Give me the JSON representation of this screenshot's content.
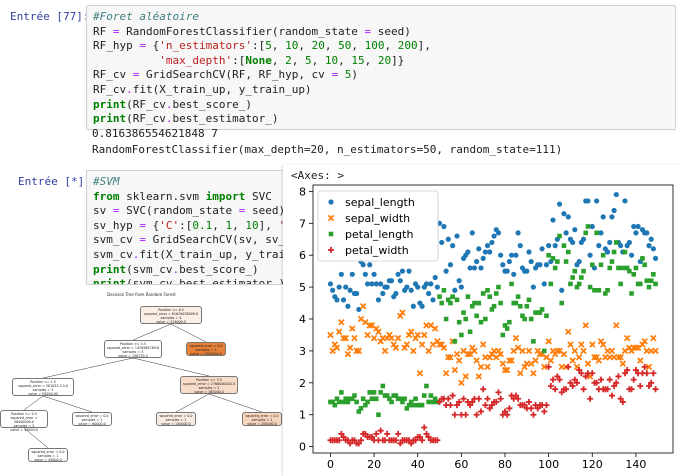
{
  "cell1": {
    "prompt": "Entrée [77]:",
    "lines": [
      [
        {
          "t": "#Foret aléatoire",
          "c": "cm"
        }
      ],
      [
        {
          "t": "RF "
        },
        {
          "t": "=",
          "c": "op"
        },
        {
          "t": " RandomForestClassifier(random_state "
        },
        {
          "t": "=",
          "c": "op"
        },
        {
          "t": " seed)"
        }
      ],
      [
        {
          "t": "RF_hyp "
        },
        {
          "t": "=",
          "c": "op"
        },
        {
          "t": " {"
        },
        {
          "t": "'n_estimators'",
          "c": "str"
        },
        {
          "t": ":["
        },
        {
          "t": "5",
          "c": "num"
        },
        {
          "t": ", "
        },
        {
          "t": "10",
          "c": "num"
        },
        {
          "t": ", "
        },
        {
          "t": "20",
          "c": "num"
        },
        {
          "t": ", "
        },
        {
          "t": "50",
          "c": "num"
        },
        {
          "t": ", "
        },
        {
          "t": "100",
          "c": "num"
        },
        {
          "t": ", "
        },
        {
          "t": "200",
          "c": "num"
        },
        {
          "t": "],"
        }
      ],
      [
        {
          "t": "          "
        },
        {
          "t": "'max_depth'",
          "c": "str"
        },
        {
          "t": ":["
        },
        {
          "t": "None",
          "c": "kw"
        },
        {
          "t": ", "
        },
        {
          "t": "2",
          "c": "num"
        },
        {
          "t": ", "
        },
        {
          "t": "5",
          "c": "num"
        },
        {
          "t": ", "
        },
        {
          "t": "10",
          "c": "num"
        },
        {
          "t": ", "
        },
        {
          "t": "15",
          "c": "num"
        },
        {
          "t": ", "
        },
        {
          "t": "20",
          "c": "num"
        },
        {
          "t": "]}"
        }
      ],
      [
        {
          "t": "RF_cv "
        },
        {
          "t": "=",
          "c": "op"
        },
        {
          "t": " GridSearchCV(RF, RF_hyp, cv "
        },
        {
          "t": "=",
          "c": "op"
        },
        {
          "t": " "
        },
        {
          "t": "5",
          "c": "num"
        },
        {
          "t": ")"
        }
      ],
      [
        {
          "t": "RF_cv"
        },
        {
          "t": ".",
          "c": "op"
        },
        {
          "t": "fit(X_train_up, y_train_up)"
        }
      ],
      [
        {
          "t": "print",
          "c": "nm"
        },
        {
          "t": "(RF_cv"
        },
        {
          "t": ".",
          "c": "op"
        },
        {
          "t": "best_score_)"
        }
      ],
      [
        {
          "t": "print",
          "c": "nm"
        },
        {
          "t": "(RF_cv"
        },
        {
          "t": ".",
          "c": "op"
        },
        {
          "t": "best_estimator_)"
        }
      ]
    ],
    "output": [
      "0.816386554621848 7",
      "RandomForestClassifier(max_depth=20, n_estimators=50, random_state=111)"
    ]
  },
  "cell2": {
    "prompt": "Entrée [*]:",
    "lines": [
      [
        {
          "t": "#SVM",
          "c": "cm"
        }
      ],
      [
        {
          "t": "from",
          "c": "kw"
        },
        {
          "t": " sklearn.svm "
        },
        {
          "t": "import",
          "c": "kw"
        },
        {
          "t": " SVC"
        }
      ],
      [
        {
          "t": "sv "
        },
        {
          "t": "=",
          "c": "op"
        },
        {
          "t": " SVC(random_state "
        },
        {
          "t": "=",
          "c": "op"
        },
        {
          "t": " seed)"
        }
      ],
      [
        {
          "t": "sv_hyp "
        },
        {
          "t": "=",
          "c": "op"
        },
        {
          "t": " {"
        },
        {
          "t": "'C'",
          "c": "str"
        },
        {
          "t": ":["
        },
        {
          "t": "0.1",
          "c": "num"
        },
        {
          "t": ", "
        },
        {
          "t": "1",
          "c": "num"
        },
        {
          "t": ", "
        },
        {
          "t": "10",
          "c": "num"
        },
        {
          "t": "], "
        },
        {
          "t": "'ker",
          "c": "str"
        }
      ],
      [
        {
          "t": "svm_cv "
        },
        {
          "t": "=",
          "c": "op"
        },
        {
          "t": " GridSearchCV(sv, sv_hyp"
        }
      ],
      [
        {
          "t": "svm_cv"
        },
        {
          "t": ".",
          "c": "op"
        },
        {
          "t": "fit(X_train_up, y_train_up"
        }
      ],
      [
        {
          "t": "print",
          "c": "nm"
        },
        {
          "t": "(svm_cv"
        },
        {
          "t": ".",
          "c": "op"
        },
        {
          "t": "best_score_)"
        }
      ],
      [
        {
          "t": "print",
          "c": "nm"
        },
        {
          "t": "(svm_cv"
        },
        {
          "t": ".",
          "c": "op"
        },
        {
          "t": "best_estimator_)"
        }
      ]
    ]
  },
  "plot_panel": {
    "axes_label": "<Axes: >"
  },
  "chart_data": {
    "type": "scatter",
    "xlim": [
      -8,
      157
    ],
    "ylim": [
      -0.2,
      8.2
    ],
    "xticks": [
      0,
      20,
      40,
      60,
      80,
      100,
      120,
      140
    ],
    "yticks": [
      0,
      1,
      2,
      3,
      4,
      5,
      6,
      7,
      8
    ],
    "legend_position": "top-left",
    "grid": false,
    "series": [
      {
        "name": "sepal_length",
        "marker": "circle",
        "color": "#1f77b4",
        "values": [
          5.1,
          4.9,
          4.7,
          4.6,
          5.0,
          5.4,
          4.6,
          5.0,
          4.4,
          4.9,
          5.4,
          4.8,
          4.8,
          4.3,
          5.8,
          5.7,
          5.4,
          5.1,
          5.7,
          5.1,
          5.4,
          5.1,
          4.6,
          5.1,
          4.8,
          5.0,
          5.0,
          5.2,
          5.2,
          4.7,
          4.8,
          5.4,
          5.2,
          5.5,
          4.9,
          5.0,
          5.5,
          4.9,
          4.4,
          5.1,
          5.0,
          4.5,
          4.4,
          5.0,
          5.1,
          4.8,
          5.1,
          4.6,
          5.3,
          5.0,
          7.0,
          6.4,
          6.9,
          5.5,
          6.5,
          5.7,
          6.3,
          4.9,
          6.6,
          5.2,
          5.0,
          5.9,
          6.0,
          6.1,
          5.6,
          6.7,
          5.6,
          5.8,
          6.2,
          5.6,
          5.9,
          6.1,
          6.3,
          6.1,
          6.4,
          6.6,
          6.8,
          6.7,
          6.0,
          5.7,
          5.5,
          5.5,
          5.8,
          6.0,
          5.4,
          6.0,
          6.7,
          6.3,
          5.6,
          5.5,
          5.5,
          6.1,
          5.8,
          5.0,
          5.6,
          5.7,
          5.7,
          6.2,
          5.1,
          5.7,
          6.3,
          5.8,
          7.1,
          6.3,
          6.5,
          7.6,
          4.9,
          7.3,
          6.7,
          7.2,
          6.5,
          6.4,
          6.8,
          5.7,
          5.8,
          6.4,
          6.5,
          7.7,
          7.7,
          6.0,
          6.9,
          5.6,
          7.7,
          6.3,
          6.7,
          7.2,
          6.2,
          6.1,
          6.4,
          7.2,
          7.4,
          7.9,
          6.4,
          6.3,
          6.1,
          7.7,
          6.3,
          6.4,
          6.0,
          6.9,
          6.7,
          6.9,
          5.8,
          6.8,
          6.7,
          6.7,
          6.3,
          6.5,
          6.2,
          5.9
        ]
      },
      {
        "name": "sepal_width",
        "marker": "x",
        "color": "#ff7f0e",
        "values": [
          3.5,
          3.0,
          3.2,
          3.1,
          3.6,
          3.9,
          3.4,
          3.4,
          2.9,
          3.1,
          3.7,
          3.4,
          3.0,
          3.0,
          4.0,
          4.4,
          3.9,
          3.5,
          3.8,
          3.8,
          3.4,
          3.7,
          3.6,
          3.3,
          3.4,
          3.0,
          3.4,
          3.5,
          3.4,
          3.2,
          3.1,
          3.4,
          4.1,
          4.2,
          3.1,
          3.2,
          3.5,
          3.6,
          3.0,
          3.4,
          3.5,
          2.3,
          3.2,
          3.5,
          3.8,
          3.0,
          3.8,
          3.2,
          3.7,
          3.3,
          3.2,
          3.2,
          3.1,
          2.3,
          2.8,
          2.8,
          3.3,
          2.4,
          2.9,
          2.7,
          2.0,
          3.0,
          2.2,
          2.9,
          2.9,
          3.1,
          3.0,
          2.7,
          2.2,
          2.5,
          3.2,
          2.8,
          2.5,
          2.8,
          2.9,
          3.0,
          2.8,
          3.0,
          2.9,
          2.6,
          2.4,
          2.4,
          2.7,
          2.7,
          3.0,
          3.4,
          3.1,
          2.3,
          3.0,
          2.5,
          2.6,
          3.0,
          2.6,
          2.3,
          2.7,
          3.0,
          2.9,
          2.9,
          2.5,
          2.8,
          3.3,
          2.7,
          3.0,
          2.9,
          3.0,
          3.0,
          2.5,
          2.9,
          2.5,
          3.6,
          3.2,
          2.7,
          3.0,
          2.5,
          2.8,
          3.2,
          3.0,
          3.8,
          2.6,
          2.2,
          3.2,
          2.8,
          2.8,
          2.7,
          3.3,
          3.2,
          2.8,
          3.0,
          2.8,
          3.0,
          2.8,
          3.8,
          2.8,
          2.8,
          2.6,
          3.0,
          3.4,
          3.1,
          3.0,
          3.1,
          3.1,
          3.1,
          2.7,
          3.2,
          3.3,
          3.0,
          2.5,
          3.0,
          3.4,
          3.0
        ]
      },
      {
        "name": "petal_length",
        "marker": "square",
        "color": "#2ca02c",
        "values": [
          1.4,
          1.4,
          1.3,
          1.5,
          1.4,
          1.7,
          1.4,
          1.5,
          1.4,
          1.5,
          1.5,
          1.6,
          1.4,
          1.1,
          1.2,
          1.5,
          1.3,
          1.4,
          1.7,
          1.5,
          1.7,
          1.5,
          1.0,
          1.7,
          1.9,
          1.6,
          1.6,
          1.5,
          1.4,
          1.6,
          1.6,
          1.5,
          1.5,
          1.4,
          1.5,
          1.2,
          1.3,
          1.4,
          1.3,
          1.5,
          1.3,
          1.3,
          1.3,
          1.6,
          1.9,
          1.4,
          1.6,
          1.4,
          1.5,
          1.4,
          4.7,
          4.5,
          4.9,
          4.0,
          4.6,
          4.5,
          4.7,
          3.3,
          4.6,
          3.9,
          3.5,
          4.2,
          4.0,
          4.7,
          3.6,
          4.4,
          4.5,
          4.1,
          4.5,
          3.9,
          4.8,
          4.0,
          4.9,
          4.7,
          4.3,
          4.4,
          4.8,
          5.0,
          4.5,
          3.5,
          3.8,
          3.7,
          3.9,
          5.1,
          4.5,
          4.5,
          4.7,
          4.4,
          4.1,
          4.0,
          4.4,
          4.6,
          4.0,
          3.3,
          4.2,
          4.2,
          4.2,
          4.3,
          3.0,
          4.1,
          6.0,
          5.1,
          5.9,
          5.6,
          5.8,
          6.6,
          4.5,
          6.3,
          5.8,
          6.1,
          5.1,
          5.3,
          5.5,
          5.0,
          5.1,
          5.3,
          5.5,
          6.7,
          6.9,
          5.0,
          5.7,
          4.9,
          6.7,
          4.9,
          5.7,
          6.0,
          4.8,
          4.9,
          5.6,
          5.8,
          6.1,
          6.4,
          5.6,
          5.1,
          5.6,
          6.1,
          5.6,
          5.5,
          4.8,
          5.4,
          5.6,
          5.1,
          5.1,
          5.9,
          5.7,
          5.2,
          5.0,
          5.2,
          5.4,
          5.1
        ]
      },
      {
        "name": "petal_width",
        "marker": "plus",
        "color": "#d62728",
        "values": [
          0.2,
          0.2,
          0.2,
          0.2,
          0.2,
          0.4,
          0.3,
          0.2,
          0.2,
          0.1,
          0.2,
          0.2,
          0.1,
          0.1,
          0.2,
          0.4,
          0.4,
          0.3,
          0.3,
          0.3,
          0.2,
          0.4,
          0.2,
          0.5,
          0.2,
          0.2,
          0.4,
          0.2,
          0.2,
          0.2,
          0.2,
          0.4,
          0.1,
          0.2,
          0.2,
          0.2,
          0.2,
          0.1,
          0.2,
          0.2,
          0.3,
          0.3,
          0.2,
          0.6,
          0.4,
          0.3,
          0.2,
          0.2,
          0.2,
          0.2,
          1.4,
          1.5,
          1.5,
          1.3,
          1.5,
          1.3,
          1.6,
          1.0,
          1.3,
          1.4,
          1.0,
          1.5,
          1.0,
          1.4,
          1.3,
          1.4,
          1.5,
          1.0,
          1.5,
          1.1,
          1.8,
          1.3,
          1.5,
          1.2,
          1.3,
          1.4,
          1.4,
          1.7,
          1.5,
          1.0,
          1.1,
          1.0,
          1.2,
          1.6,
          1.5,
          1.6,
          1.5,
          1.3,
          1.3,
          1.3,
          1.2,
          1.4,
          1.2,
          1.0,
          1.3,
          1.2,
          1.3,
          1.3,
          1.1,
          1.3,
          2.5,
          1.9,
          2.1,
          1.8,
          2.2,
          2.1,
          1.7,
          1.8,
          1.8,
          2.5,
          2.0,
          1.9,
          2.1,
          2.0,
          2.4,
          2.3,
          1.8,
          2.2,
          2.3,
          1.5,
          2.3,
          2.0,
          2.0,
          1.8,
          2.1,
          1.8,
          1.8,
          1.8,
          2.1,
          1.6,
          1.9,
          2.0,
          2.2,
          1.5,
          1.4,
          2.3,
          2.4,
          1.8,
          1.8,
          2.1,
          2.4,
          2.3,
          1.9,
          2.3,
          2.5,
          2.3,
          1.9,
          2.0,
          2.3,
          1.8
        ]
      }
    ]
  },
  "tree_panel": {
    "title": "Decision Tree from Random Forest",
    "nodes": [
      {
        "lines": [
          "Position <= 6.5",
          "squared_error = 61629038009.0",
          "samples = 4",
          "value = 319000.0"
        ]
      },
      {
        "lines": [
          "Position <= 5.5",
          "squared_error = 1429965769.8",
          "samples = 3",
          "value = 156733.3"
        ]
      },
      {
        "lines": [
          "squared_error = 0.0",
          "samples = 1",
          "value = 1000000.0"
        ]
      },
      {
        "lines": [
          "Position <= 1.5",
          "squared_error = 281033.3 0.0",
          "samples = 3",
          "value = 55000.00"
        ]
      },
      {
        "lines": [
          "Position <= 3.5",
          "squared_error = 2766000000.0",
          "samples = 2",
          "value = 160000.0"
        ]
      },
      {
        "lines": [
          "Position <= 0.5",
          "squared_error = 56400000.0",
          "samples = 2",
          "value = 45000.0"
        ]
      },
      {
        "lines": [
          "squared_error = 0.0",
          "samples = 1",
          "value = 60000.0"
        ]
      },
      {
        "lines": [
          "squared_error = 0.0",
          "samples = 1",
          "value = 150000.0"
        ]
      },
      {
        "lines": [
          "squared_error = 0.0",
          "samples = 1",
          "value = 200000.0"
        ]
      },
      {
        "lines": [
          "squared_error = 0.0",
          "samples = 1",
          "value = 45000.0"
        ]
      }
    ]
  }
}
